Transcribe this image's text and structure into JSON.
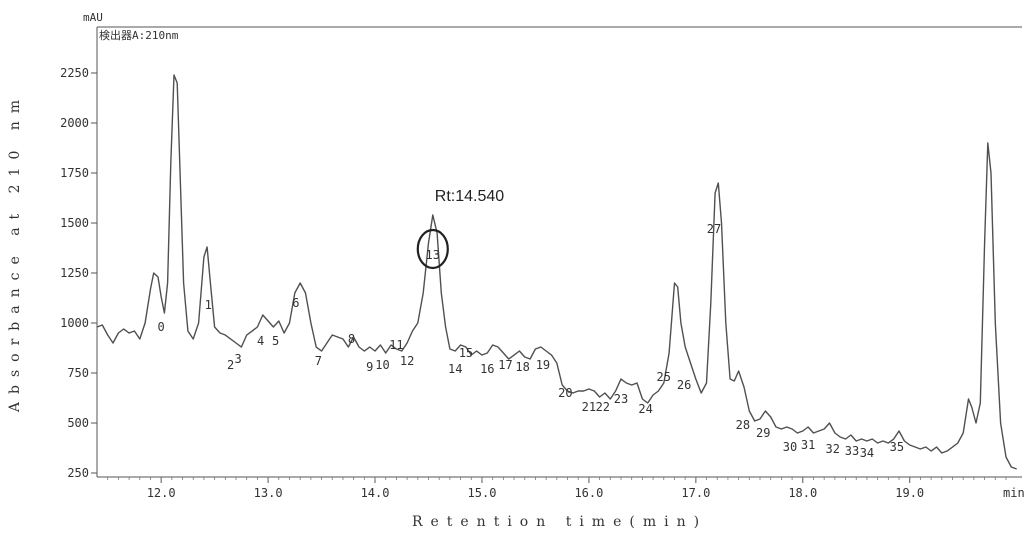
{
  "chart_data": {
    "type": "line",
    "title": "",
    "detector_label": "検出器A:210nm",
    "y_unit": "mAU",
    "x_unit": "min",
    "xlabel": "Retention time(min)",
    "ylabel": "Absorbance at 210 nm",
    "xlim": [
      11.4,
      20.05
    ],
    "ylim": [
      230,
      2480
    ],
    "x_ticks": [
      12.0,
      13.0,
      14.0,
      15.0,
      16.0,
      17.0,
      18.0,
      19.0
    ],
    "x_tick_labels": [
      "12.0",
      "13.0",
      "14.0",
      "15.0",
      "16.0",
      "17.0",
      "18.0",
      "19.0"
    ],
    "y_ticks": [
      250,
      500,
      750,
      1000,
      1250,
      1500,
      1750,
      2000,
      2250
    ],
    "y_tick_labels": [
      "250",
      "500",
      "750",
      "1000",
      "1250",
      "1500",
      "1750",
      "2000",
      "2250"
    ],
    "grid": false,
    "series": [
      {
        "color": "#505050",
        "points": [
          [
            11.4,
            980
          ],
          [
            11.45,
            990
          ],
          [
            11.5,
            940
          ],
          [
            11.55,
            900
          ],
          [
            11.6,
            950
          ],
          [
            11.65,
            970
          ],
          [
            11.7,
            950
          ],
          [
            11.75,
            960
          ],
          [
            11.8,
            920
          ],
          [
            11.85,
            1000
          ],
          [
            11.9,
            1170
          ],
          [
            11.93,
            1250
          ],
          [
            11.97,
            1230
          ],
          [
            12.0,
            1130
          ],
          [
            12.03,
            1050
          ],
          [
            12.06,
            1200
          ],
          [
            12.09,
            1800
          ],
          [
            12.12,
            2240
          ],
          [
            12.15,
            2200
          ],
          [
            12.18,
            1700
          ],
          [
            12.21,
            1200
          ],
          [
            12.25,
            960
          ],
          [
            12.3,
            920
          ],
          [
            12.35,
            1000
          ],
          [
            12.4,
            1330
          ],
          [
            12.43,
            1380
          ],
          [
            12.46,
            1200
          ],
          [
            12.5,
            980
          ],
          [
            12.55,
            950
          ],
          [
            12.6,
            940
          ],
          [
            12.65,
            920
          ],
          [
            12.7,
            900
          ],
          [
            12.75,
            880
          ],
          [
            12.8,
            940
          ],
          [
            12.85,
            960
          ],
          [
            12.9,
            980
          ],
          [
            12.95,
            1040
          ],
          [
            13.0,
            1010
          ],
          [
            13.05,
            980
          ],
          [
            13.1,
            1010
          ],
          [
            13.15,
            950
          ],
          [
            13.2,
            1000
          ],
          [
            13.25,
            1150
          ],
          [
            13.3,
            1200
          ],
          [
            13.35,
            1150
          ],
          [
            13.4,
            1000
          ],
          [
            13.45,
            880
          ],
          [
            13.5,
            860
          ],
          [
            13.55,
            900
          ],
          [
            13.6,
            940
          ],
          [
            13.65,
            930
          ],
          [
            13.7,
            920
          ],
          [
            13.75,
            880
          ],
          [
            13.8,
            930
          ],
          [
            13.85,
            880
          ],
          [
            13.9,
            860
          ],
          [
            13.95,
            880
          ],
          [
            14.0,
            860
          ],
          [
            14.05,
            890
          ],
          [
            14.1,
            850
          ],
          [
            14.15,
            890
          ],
          [
            14.2,
            870
          ],
          [
            14.25,
            860
          ],
          [
            14.3,
            900
          ],
          [
            14.35,
            960
          ],
          [
            14.4,
            1000
          ],
          [
            14.45,
            1150
          ],
          [
            14.5,
            1400
          ],
          [
            14.54,
            1540
          ],
          [
            14.58,
            1450
          ],
          [
            14.62,
            1150
          ],
          [
            14.66,
            980
          ],
          [
            14.7,
            870
          ],
          [
            14.75,
            860
          ],
          [
            14.8,
            890
          ],
          [
            14.85,
            880
          ],
          [
            14.9,
            840
          ],
          [
            14.95,
            860
          ],
          [
            15.0,
            840
          ],
          [
            15.05,
            850
          ],
          [
            15.1,
            890
          ],
          [
            15.15,
            880
          ],
          [
            15.2,
            850
          ],
          [
            15.25,
            820
          ],
          [
            15.3,
            840
          ],
          [
            15.35,
            860
          ],
          [
            15.4,
            830
          ],
          [
            15.45,
            820
          ],
          [
            15.5,
            870
          ],
          [
            15.55,
            880
          ],
          [
            15.6,
            860
          ],
          [
            15.65,
            840
          ],
          [
            15.7,
            800
          ],
          [
            15.75,
            690
          ],
          [
            15.8,
            660
          ],
          [
            15.85,
            650
          ],
          [
            15.9,
            660
          ],
          [
            15.95,
            660
          ],
          [
            16.0,
            670
          ],
          [
            16.05,
            660
          ],
          [
            16.1,
            630
          ],
          [
            16.15,
            650
          ],
          [
            16.2,
            620
          ],
          [
            16.25,
            660
          ],
          [
            16.3,
            720
          ],
          [
            16.35,
            700
          ],
          [
            16.4,
            690
          ],
          [
            16.45,
            700
          ],
          [
            16.5,
            620
          ],
          [
            16.55,
            600
          ],
          [
            16.6,
            640
          ],
          [
            16.65,
            660
          ],
          [
            16.7,
            700
          ],
          [
            16.75,
            850
          ],
          [
            16.8,
            1200
          ],
          [
            16.83,
            1180
          ],
          [
            16.86,
            1000
          ],
          [
            16.9,
            880
          ],
          [
            16.95,
            800
          ],
          [
            17.0,
            720
          ],
          [
            17.05,
            650
          ],
          [
            17.1,
            700
          ],
          [
            17.14,
            1100
          ],
          [
            17.18,
            1650
          ],
          [
            17.21,
            1700
          ],
          [
            17.24,
            1500
          ],
          [
            17.28,
            1000
          ],
          [
            17.32,
            720
          ],
          [
            17.36,
            710
          ],
          [
            17.4,
            760
          ],
          [
            17.45,
            680
          ],
          [
            17.5,
            560
          ],
          [
            17.55,
            510
          ],
          [
            17.6,
            520
          ],
          [
            17.65,
            560
          ],
          [
            17.7,
            530
          ],
          [
            17.75,
            480
          ],
          [
            17.8,
            470
          ],
          [
            17.85,
            480
          ],
          [
            17.9,
            470
          ],
          [
            17.95,
            450
          ],
          [
            18.0,
            460
          ],
          [
            18.05,
            480
          ],
          [
            18.1,
            450
          ],
          [
            18.15,
            460
          ],
          [
            18.2,
            470
          ],
          [
            18.25,
            500
          ],
          [
            18.3,
            450
          ],
          [
            18.35,
            430
          ],
          [
            18.4,
            420
          ],
          [
            18.45,
            440
          ],
          [
            18.5,
            410
          ],
          [
            18.55,
            420
          ],
          [
            18.6,
            410
          ],
          [
            18.65,
            420
          ],
          [
            18.7,
            400
          ],
          [
            18.75,
            410
          ],
          [
            18.8,
            400
          ],
          [
            18.85,
            420
          ],
          [
            18.9,
            460
          ],
          [
            18.95,
            410
          ],
          [
            19.0,
            390
          ],
          [
            19.05,
            380
          ],
          [
            19.1,
            370
          ],
          [
            19.15,
            380
          ],
          [
            19.2,
            360
          ],
          [
            19.25,
            380
          ],
          [
            19.3,
            350
          ],
          [
            19.35,
            360
          ],
          [
            19.4,
            380
          ],
          [
            19.45,
            400
          ],
          [
            19.5,
            450
          ],
          [
            19.55,
            620
          ],
          [
            19.58,
            580
          ],
          [
            19.62,
            500
          ],
          [
            19.66,
            600
          ],
          [
            19.7,
            1400
          ],
          [
            19.73,
            1900
          ],
          [
            19.76,
            1750
          ],
          [
            19.8,
            1000
          ],
          [
            19.85,
            500
          ],
          [
            19.9,
            330
          ],
          [
            19.95,
            280
          ],
          [
            20.0,
            270
          ]
        ]
      }
    ],
    "peak_labels": [
      {
        "text": "0",
        "x": 12.0,
        "y": 960
      },
      {
        "text": "1",
        "x": 12.44,
        "y": 1070
      },
      {
        "text": "2",
        "x": 12.65,
        "y": 770
      },
      {
        "text": "3",
        "x": 12.72,
        "y": 800
      },
      {
        "text": "4",
        "x": 12.93,
        "y": 890
      },
      {
        "text": "5",
        "x": 13.07,
        "y": 890
      },
      {
        "text": "6",
        "x": 13.26,
        "y": 1080
      },
      {
        "text": "7",
        "x": 13.47,
        "y": 790
      },
      {
        "text": "8",
        "x": 13.78,
        "y": 900
      },
      {
        "text": "9",
        "x": 13.95,
        "y": 760
      },
      {
        "text": "10",
        "x": 14.07,
        "y": 770
      },
      {
        "text": "11",
        "x": 14.2,
        "y": 870
      },
      {
        "text": "12",
        "x": 14.3,
        "y": 790
      },
      {
        "text": "13",
        "x": 14.54,
        "y": 1320
      },
      {
        "text": "14",
        "x": 14.75,
        "y": 750
      },
      {
        "text": "15",
        "x": 14.85,
        "y": 830
      },
      {
        "text": "16",
        "x": 15.05,
        "y": 750
      },
      {
        "text": "17",
        "x": 15.22,
        "y": 770
      },
      {
        "text": "18",
        "x": 15.38,
        "y": 760
      },
      {
        "text": "19",
        "x": 15.57,
        "y": 770
      },
      {
        "text": "20",
        "x": 15.78,
        "y": 630
      },
      {
        "text": "21",
        "x": 16.0,
        "y": 560
      },
      {
        "text": "22",
        "x": 16.13,
        "y": 560
      },
      {
        "text": "23",
        "x": 16.3,
        "y": 600
      },
      {
        "text": "24",
        "x": 16.53,
        "y": 550
      },
      {
        "text": "25",
        "x": 16.7,
        "y": 710
      },
      {
        "text": "26",
        "x": 16.89,
        "y": 670
      },
      {
        "text": "27",
        "x": 17.17,
        "y": 1450
      },
      {
        "text": "28",
        "x": 17.44,
        "y": 470
      },
      {
        "text": "29",
        "x": 17.63,
        "y": 430
      },
      {
        "text": "30",
        "x": 17.88,
        "y": 360
      },
      {
        "text": "31",
        "x": 18.05,
        "y": 370
      },
      {
        "text": "32",
        "x": 18.28,
        "y": 350
      },
      {
        "text": "33",
        "x": 18.46,
        "y": 340
      },
      {
        "text": "34",
        "x": 18.6,
        "y": 330
      },
      {
        "text": "35",
        "x": 18.88,
        "y": 360
      }
    ],
    "annotation": {
      "text": "Rt:14.540",
      "x": 14.54,
      "y": 1610
    },
    "highlight": {
      "x": 14.54,
      "y": 1370,
      "label": "13"
    }
  }
}
